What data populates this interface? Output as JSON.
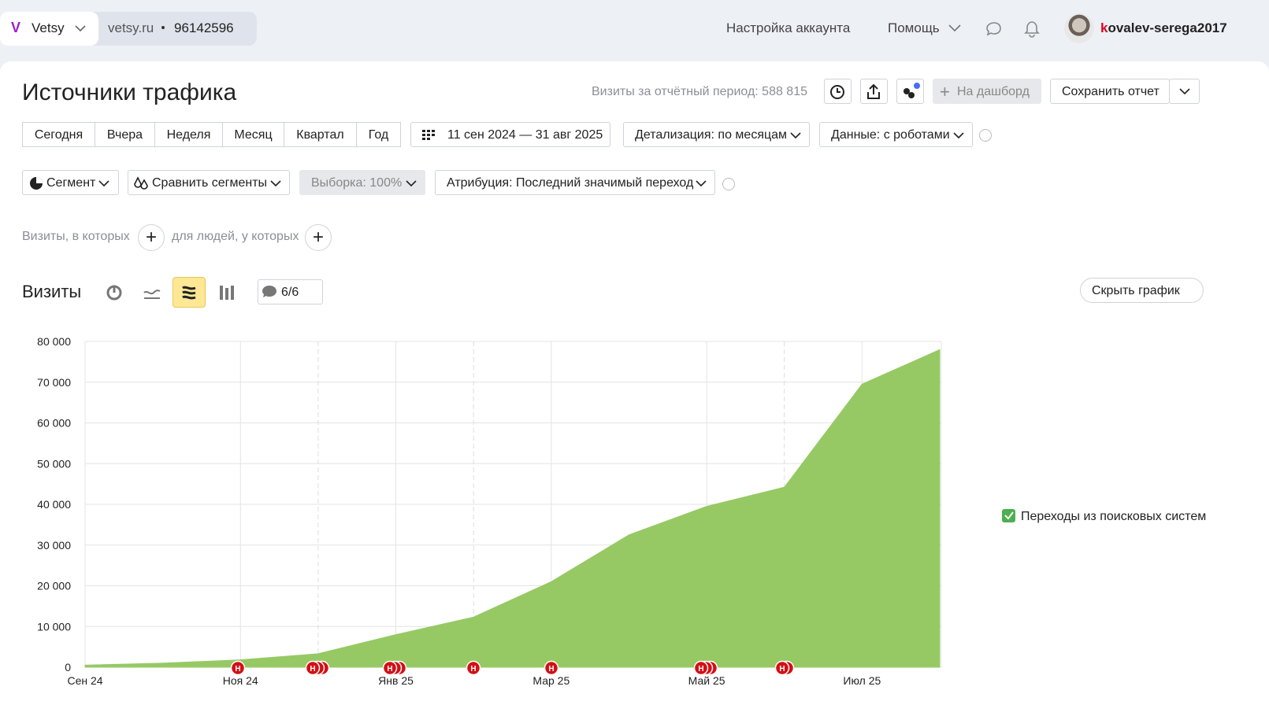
{
  "header": {
    "logo": "V",
    "app": "Vetsy",
    "site": "vetsy.ru",
    "counter": "96142596",
    "account_settings": "Настройка аккаунта",
    "help": "Помощь",
    "user": "kovalev-serega2017"
  },
  "report": {
    "title": "Источники трафика",
    "visits_period": "Визиты за отчётный период: 588 815",
    "to_dashboard": "На дашборд",
    "save_report": "Сохранить отчет"
  },
  "periods": [
    "Сегодня",
    "Вчера",
    "Неделя",
    "Месяц",
    "Квартал",
    "Год"
  ],
  "date_range": "11 сен 2024 — 31 авг 2025",
  "detail": "Детализация: по месяцам",
  "robots": "Данные: с роботами",
  "segment": "Сегмент",
  "compare": "Сравнить сегменты",
  "sample": "Выборка: 100%",
  "attribution": "Атрибуция: Последний значимый переход",
  "filters": {
    "visits": "Визиты, в которых",
    "people": "для людей, у которых"
  },
  "chart_header": {
    "title": "Визиты",
    "annotations_count": "6/6",
    "hide": "Скрыть график",
    "annotation_icon": "Н"
  },
  "chart_data": {
    "type": "area",
    "categories": [
      "Сен 24",
      null,
      "Ноя 24",
      null,
      "Янв 25",
      null,
      "Мар 25",
      null,
      "Май 25",
      null,
      "Июл 25",
      null
    ],
    "series": [
      {
        "name": "Переходы из поисковых систем",
        "color": "#96c964",
        "values": [
          500,
          1000,
          1800,
          3300,
          8000,
          12300,
          21000,
          32500,
          39500,
          44200,
          69500,
          78000
        ]
      }
    ],
    "ylim": [
      0,
      80000
    ],
    "yticks": [
      0,
      {
        "value": 10000,
        "label": "10 000"
      },
      {
        "value": 20000,
        "label": "20 000"
      },
      {
        "value": 30000,
        "label": "30 000"
      },
      {
        "value": 40000,
        "label": "40 000"
      },
      {
        "value": 50000,
        "label": "50 000"
      },
      {
        "value": 60000,
        "label": "60 000"
      },
      {
        "value": 70000,
        "label": "70 000"
      },
      {
        "value": 80000,
        "label": "80 000"
      }
    ],
    "grid": true,
    "legend": "right"
  }
}
